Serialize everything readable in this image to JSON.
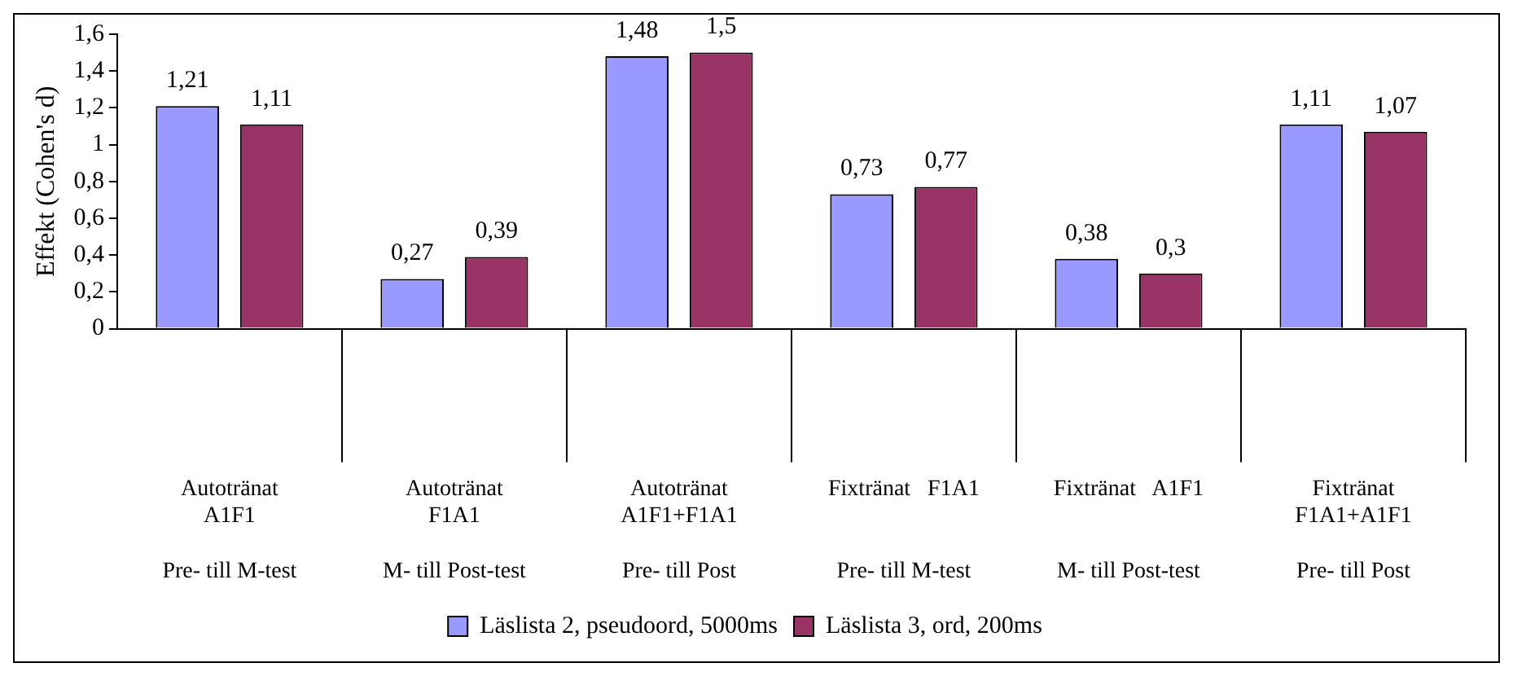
{
  "chart_data": {
    "type": "bar",
    "ylabel": "Effekt (Cohen's d)",
    "categories": [
      "Autotränat\nA1F1\n\nPre- till M-test",
      "Autotränat\nF1A1\n\nM- till Post-test",
      "Autotränat\nA1F1+F1A1\n\nPre- till Post",
      "Fixtränat   F1A1\n\n\nPre- till M-test",
      "Fixtränat   A1F1\n\n\nM- till Post-test",
      "Fixtränat\nF1A1+A1F1\n\nPre- till Post"
    ],
    "series": [
      {
        "name": "Läslista 2, pseudoord, 5000ms",
        "color": "#9999ff",
        "values": [
          1.21,
          0.27,
          1.48,
          0.73,
          0.38,
          1.11
        ],
        "value_labels": [
          "1,21",
          "0,27",
          "1,48",
          "0,73",
          "0,38",
          "1,11"
        ]
      },
      {
        "name": "Läslista 3, ord, 200ms",
        "color": "#993366",
        "values": [
          1.11,
          0.39,
          1.5,
          0.77,
          0.3,
          1.07
        ],
        "value_labels": [
          "1,11",
          "0,39",
          "1,5",
          "0,77",
          "0,3",
          "1,07"
        ]
      }
    ],
    "ylim": [
      0,
      1.6
    ],
    "yticks": [
      0,
      {
        "value": 0.2,
        "label": "0,2"
      },
      {
        "value": 0.4,
        "label": "0,4"
      },
      {
        "value": 0.6,
        "label": "0,6"
      },
      {
        "value": 0.8,
        "label": "0,8"
      },
      1,
      {
        "value": 1.2,
        "label": "1,2"
      },
      {
        "value": 1.4,
        "label": "1,4"
      },
      {
        "value": 1.6,
        "label": "1,6"
      }
    ],
    "grid": false,
    "legend": "bottom"
  }
}
